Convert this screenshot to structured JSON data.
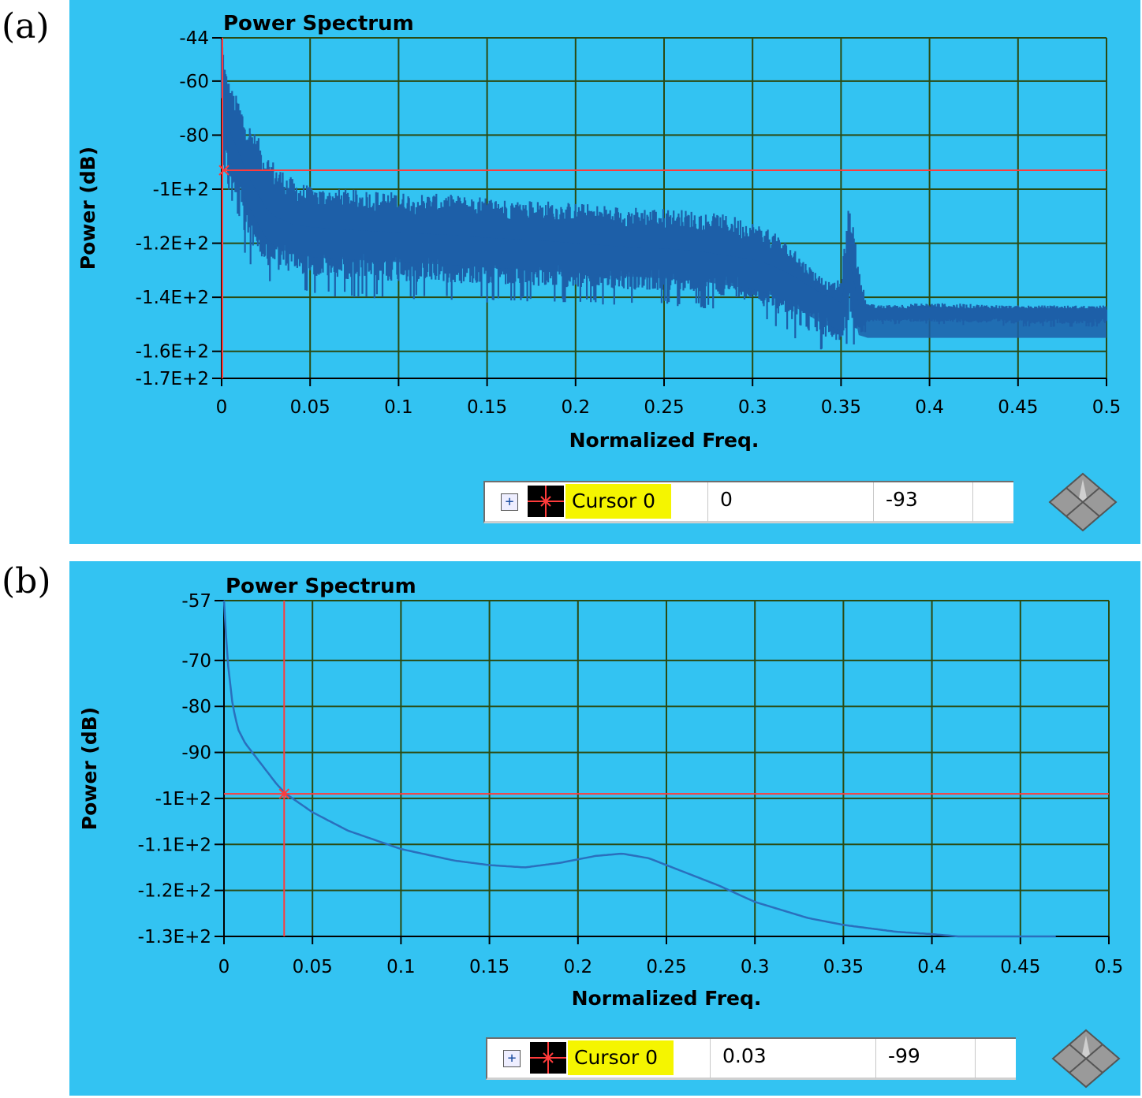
{
  "chart_data": [
    {
      "panel_label": "(a)",
      "type": "line",
      "title": "Power Spectrum",
      "xlabel": "Normalized Freq.",
      "ylabel": "Power (dB)",
      "xlim": [
        0,
        0.5
      ],
      "ylim": [
        -170,
        -44
      ],
      "x_ticks": [
        0,
        0.05,
        0.1,
        0.15,
        0.2,
        0.25,
        0.3,
        0.35,
        0.4,
        0.45,
        0.5
      ],
      "x_tick_labels": [
        "0",
        "0.05",
        "0.1",
        "0.15",
        "0.2",
        "0.25",
        "0.3",
        "0.35",
        "0.4",
        "0.45",
        "0.5"
      ],
      "y_ticks": [
        -44,
        -60,
        -80,
        -100,
        -120,
        -140,
        -160,
        -170
      ],
      "y_tick_labels": [
        "-44",
        "-60",
        "-80",
        "-1E+2",
        "-1.2E+2",
        "-1.4E+2",
        "-1.6E+2",
        "-1.7E+2"
      ],
      "grid": true,
      "noisy": true,
      "series": [
        {
          "x": [
            0,
            0.002,
            0.005,
            0.01,
            0.015,
            0.02,
            0.025,
            0.03,
            0.04,
            0.05,
            0.07,
            0.1,
            0.13,
            0.15,
            0.18,
            0.2,
            0.22,
            0.25,
            0.27,
            0.29,
            0.3,
            0.31,
            0.32,
            0.33,
            0.34,
            0.345,
            0.35,
            0.355,
            0.36,
            0.365,
            0.37,
            0.4,
            0.45,
            0.5
          ],
          "upper": [
            -44,
            -55,
            -62,
            -67,
            -75,
            -80,
            -86,
            -90,
            -96,
            -99,
            -100,
            -101,
            -102,
            -103,
            -104,
            -105,
            -106,
            -107,
            -108,
            -110,
            -112,
            -115,
            -120,
            -127,
            -133,
            -135,
            -133,
            -102,
            -130,
            -142,
            -143,
            -142,
            -143,
            -143
          ],
          "mean": [
            -48,
            -70,
            -82,
            -90,
            -98,
            -104,
            -110,
            -113,
            -116,
            -117,
            -118,
            -119,
            -120,
            -121,
            -122,
            -123,
            -124,
            -125,
            -126,
            -128,
            -129,
            -131,
            -134,
            -138,
            -142,
            -143,
            -145,
            -130,
            -146,
            -147,
            -147,
            -147,
            -147,
            -147
          ],
          "lower": [
            -100,
            -110,
            -115,
            -122,
            -128,
            -132,
            -135,
            -137,
            -138,
            -139,
            -140,
            -141,
            -141,
            -142,
            -142,
            -142,
            -143,
            -143,
            -144,
            -145,
            -147,
            -150,
            -154,
            -158,
            -160,
            -162,
            -163,
            -155,
            -161,
            -150,
            -150,
            -150,
            -151,
            -151
          ],
          "color": "#1d5fa8"
        }
      ],
      "cursor": {
        "name": "Cursor 0",
        "x": 0,
        "y": -93,
        "x_text": "0",
        "y_text": "-93",
        "color": "#ff3b3b"
      }
    },
    {
      "panel_label": "(b)",
      "type": "line",
      "title": "Power Spectrum",
      "xlabel": "Normalized Freq.",
      "ylabel": "Power (dB)",
      "xlim": [
        0,
        0.5
      ],
      "ylim": [
        -130,
        -57
      ],
      "x_ticks": [
        0,
        0.05,
        0.1,
        0.15,
        0.2,
        0.25,
        0.3,
        0.35,
        0.4,
        0.45,
        0.5
      ],
      "x_tick_labels": [
        "0",
        "0.05",
        "0.1",
        "0.15",
        "0.2",
        "0.25",
        "0.3",
        "0.35",
        "0.4",
        "0.45",
        "0.5"
      ],
      "y_ticks": [
        -57,
        -70,
        -80,
        -90,
        -100,
        -110,
        -120,
        -130
      ],
      "y_tick_labels": [
        "-57",
        "-70",
        "-80",
        "-90",
        "-1E+2",
        "-1.1E+2",
        "-1.2E+2",
        "-1.3E+2"
      ],
      "grid": true,
      "noisy": false,
      "series": [
        {
          "x": [
            0,
            0.002,
            0.005,
            0.008,
            0.012,
            0.02,
            0.03,
            0.035,
            0.05,
            0.07,
            0.1,
            0.13,
            0.15,
            0.17,
            0.19,
            0.21,
            0.225,
            0.24,
            0.25,
            0.28,
            0.3,
            0.33,
            0.35,
            0.38,
            0.4,
            0.43,
            0.45,
            0.47
          ],
          "y": [
            -57,
            -70,
            -80,
            -85,
            -88,
            -92,
            -97,
            -99,
            -103,
            -107,
            -111,
            -113.5,
            -114.5,
            -115,
            -114,
            -112.5,
            -112,
            -113,
            -114.5,
            -119,
            -122.5,
            -126,
            -127.5,
            -129,
            -129.5,
            -130.5,
            -131,
            -131.5
          ],
          "color": "#2a6fbd"
        }
      ],
      "cursor": {
        "name": "Cursor 0",
        "x": 0.034,
        "y": -99,
        "x_text": "0.03",
        "y_text": "-99",
        "color": "#ff3b3b"
      }
    }
  ]
}
